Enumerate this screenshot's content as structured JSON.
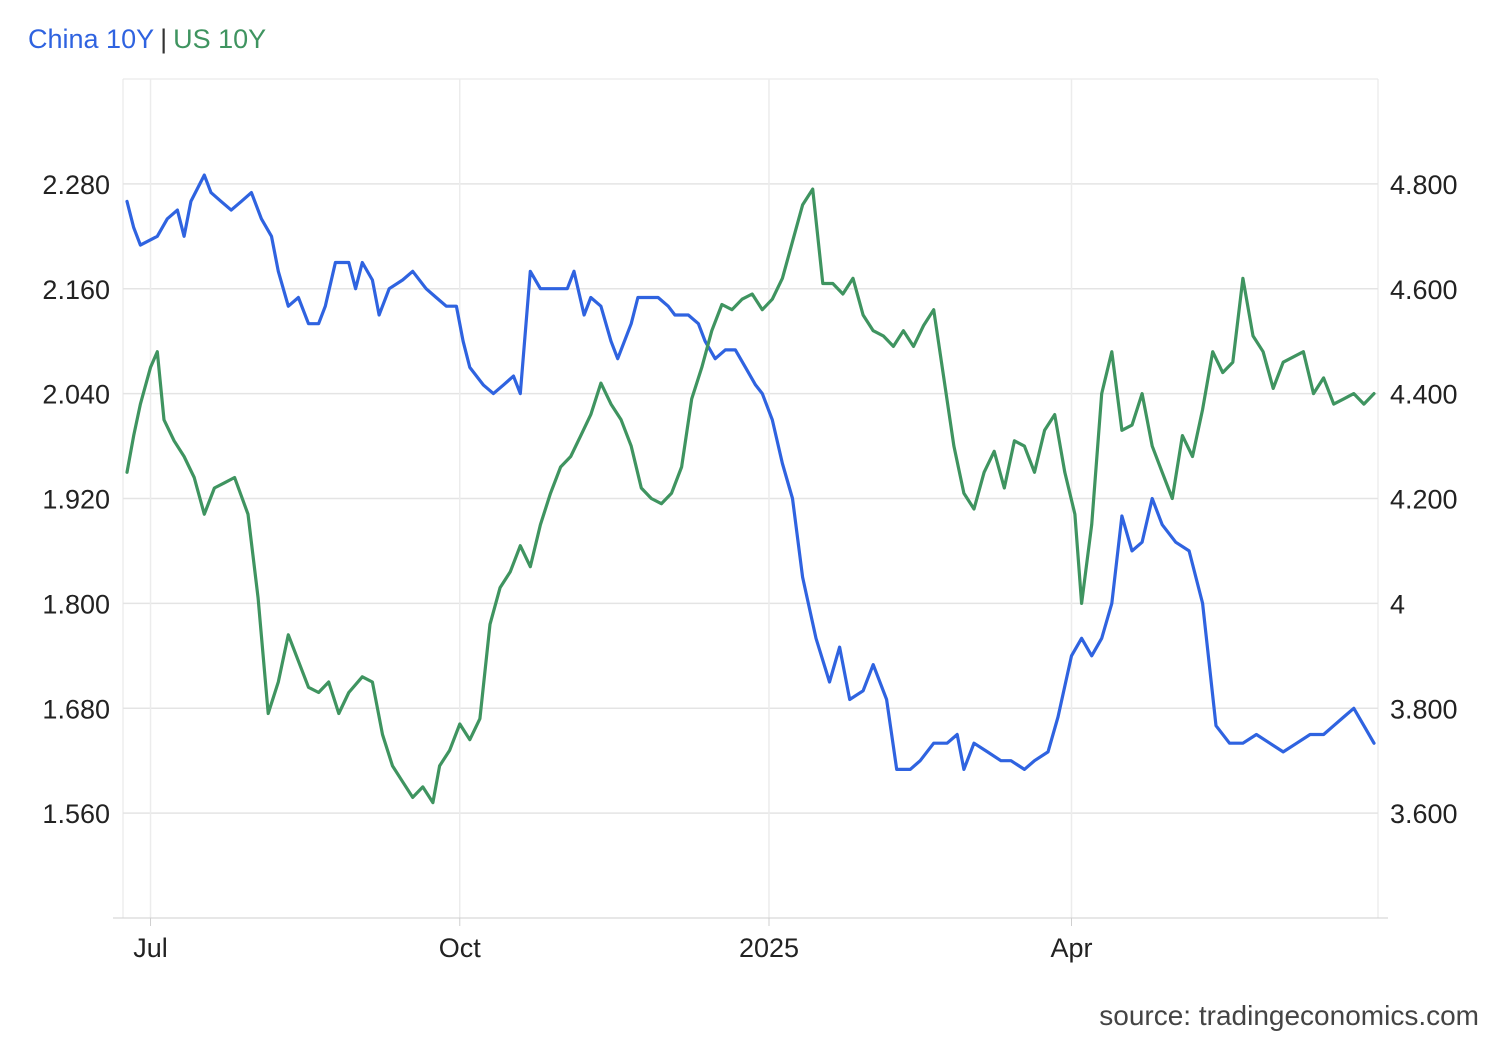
{
  "legend": {
    "china_label": "China 10Y",
    "separator": "|",
    "us_label": "US 10Y",
    "china_color": "#2f63e0",
    "us_color": "#3f9460"
  },
  "source_text": "source: tradingeconomics.com",
  "chart_data": {
    "type": "line",
    "title": "",
    "xlabel": "",
    "x_axis": {
      "ticks": [
        {
          "label": "Jul",
          "date": "2024-07-01"
        },
        {
          "label": "Oct",
          "date": "2024-10-01"
        },
        {
          "label": "2025",
          "date": "2025-01-01"
        },
        {
          "label": "Apr",
          "date": "2025-04-01"
        }
      ],
      "range": [
        "2024-06-24",
        "2025-06-30"
      ]
    },
    "y_left": {
      "ticks": [
        "2.280",
        "2.160",
        "2.040",
        "1.920",
        "1.800",
        "1.680",
        "1.560"
      ],
      "range": [
        1.44,
        2.4
      ]
    },
    "y_right": {
      "ticks": [
        "4.800",
        "4.600",
        "4.400",
        "4.200",
        "4",
        "3.800",
        "3.600"
      ],
      "range": [
        3.4,
        5.0
      ]
    },
    "grid": true,
    "legend_position": "top-left",
    "series": [
      {
        "name": "China 10Y",
        "axis": "left",
        "color": "#2f63e0",
        "points": [
          [
            "2024-06-24",
            2.26
          ],
          [
            "2024-06-26",
            2.23
          ],
          [
            "2024-06-28",
            2.21
          ],
          [
            "2024-07-03",
            2.22
          ],
          [
            "2024-07-06",
            2.24
          ],
          [
            "2024-07-09",
            2.25
          ],
          [
            "2024-07-11",
            2.22
          ],
          [
            "2024-07-13",
            2.26
          ],
          [
            "2024-07-17",
            2.29
          ],
          [
            "2024-07-19",
            2.27
          ],
          [
            "2024-07-22",
            2.26
          ],
          [
            "2024-07-25",
            2.25
          ],
          [
            "2024-07-28",
            2.26
          ],
          [
            "2024-07-31",
            2.27
          ],
          [
            "2024-08-03",
            2.24
          ],
          [
            "2024-08-06",
            2.22
          ],
          [
            "2024-08-08",
            2.18
          ],
          [
            "2024-08-11",
            2.14
          ],
          [
            "2024-08-14",
            2.15
          ],
          [
            "2024-08-17",
            2.12
          ],
          [
            "2024-08-20",
            2.12
          ],
          [
            "2024-08-22",
            2.14
          ],
          [
            "2024-08-25",
            2.19
          ],
          [
            "2024-08-29",
            2.19
          ],
          [
            "2024-08-31",
            2.16
          ],
          [
            "2024-09-02",
            2.19
          ],
          [
            "2024-09-05",
            2.17
          ],
          [
            "2024-09-07",
            2.13
          ],
          [
            "2024-09-10",
            2.16
          ],
          [
            "2024-09-14",
            2.17
          ],
          [
            "2024-09-17",
            2.18
          ],
          [
            "2024-09-21",
            2.16
          ],
          [
            "2024-09-24",
            2.15
          ],
          [
            "2024-09-27",
            2.14
          ],
          [
            "2024-09-30",
            2.14
          ],
          [
            "2024-10-02",
            2.1
          ],
          [
            "2024-10-04",
            2.07
          ],
          [
            "2024-10-08",
            2.05
          ],
          [
            "2024-10-11",
            2.04
          ],
          [
            "2024-10-14",
            2.05
          ],
          [
            "2024-10-17",
            2.06
          ],
          [
            "2024-10-19",
            2.04
          ],
          [
            "2024-10-22",
            2.18
          ],
          [
            "2024-10-25",
            2.16
          ],
          [
            "2024-10-29",
            2.16
          ],
          [
            "2024-11-02",
            2.16
          ],
          [
            "2024-11-04",
            2.18
          ],
          [
            "2024-11-07",
            2.13
          ],
          [
            "2024-11-09",
            2.15
          ],
          [
            "2024-11-12",
            2.14
          ],
          [
            "2024-11-15",
            2.1
          ],
          [
            "2024-11-17",
            2.08
          ],
          [
            "2024-11-21",
            2.12
          ],
          [
            "2024-11-23",
            2.15
          ],
          [
            "2024-11-26",
            2.15
          ],
          [
            "2024-11-29",
            2.15
          ],
          [
            "2024-12-02",
            2.14
          ],
          [
            "2024-12-04",
            2.13
          ],
          [
            "2024-12-08",
            2.13
          ],
          [
            "2024-12-11",
            2.12
          ],
          [
            "2024-12-13",
            2.1
          ],
          [
            "2024-12-16",
            2.08
          ],
          [
            "2024-12-19",
            2.09
          ],
          [
            "2024-12-22",
            2.09
          ],
          [
            "2024-12-25",
            2.07
          ],
          [
            "2024-12-28",
            2.05
          ],
          [
            "2024-12-30",
            2.04
          ],
          [
            "2025-01-02",
            2.01
          ],
          [
            "2025-01-05",
            1.96
          ],
          [
            "2025-01-08",
            1.92
          ],
          [
            "2025-01-11",
            1.83
          ],
          [
            "2025-01-15",
            1.76
          ],
          [
            "2025-01-19",
            1.71
          ],
          [
            "2025-01-22",
            1.75
          ],
          [
            "2025-01-25",
            1.69
          ],
          [
            "2025-01-29",
            1.7
          ],
          [
            "2025-02-01",
            1.73
          ],
          [
            "2025-02-05",
            1.69
          ],
          [
            "2025-02-08",
            1.61
          ],
          [
            "2025-02-12",
            1.61
          ],
          [
            "2025-02-15",
            1.62
          ],
          [
            "2025-02-19",
            1.64
          ],
          [
            "2025-02-23",
            1.64
          ],
          [
            "2025-02-26",
            1.65
          ],
          [
            "2025-02-28",
            1.61
          ],
          [
            "2025-03-03",
            1.64
          ],
          [
            "2025-03-07",
            1.63
          ],
          [
            "2025-03-11",
            1.62
          ],
          [
            "2025-03-14",
            1.62
          ],
          [
            "2025-03-18",
            1.61
          ],
          [
            "2025-03-21",
            1.62
          ],
          [
            "2025-03-25",
            1.63
          ],
          [
            "2025-03-28",
            1.67
          ],
          [
            "2025-04-01",
            1.74
          ],
          [
            "2025-04-04",
            1.76
          ],
          [
            "2025-04-07",
            1.74
          ],
          [
            "2025-04-10",
            1.76
          ],
          [
            "2025-04-13",
            1.8
          ],
          [
            "2025-04-16",
            1.9
          ],
          [
            "2025-04-19",
            1.86
          ],
          [
            "2025-04-22",
            1.87
          ],
          [
            "2025-04-25",
            1.92
          ],
          [
            "2025-04-28",
            1.89
          ],
          [
            "2025-05-02",
            1.87
          ],
          [
            "2025-05-06",
            1.86
          ],
          [
            "2025-05-10",
            1.8
          ],
          [
            "2025-05-14",
            1.66
          ],
          [
            "2025-05-18",
            1.64
          ],
          [
            "2025-05-22",
            1.64
          ],
          [
            "2025-05-26",
            1.65
          ],
          [
            "2025-05-30",
            1.64
          ],
          [
            "2025-06-03",
            1.63
          ],
          [
            "2025-06-07",
            1.64
          ],
          [
            "2025-06-11",
            1.65
          ],
          [
            "2025-06-15",
            1.65
          ],
          [
            "2025-06-18",
            1.66
          ],
          [
            "2025-06-21",
            1.67
          ],
          [
            "2025-06-24",
            1.68
          ],
          [
            "2025-06-27",
            1.66
          ],
          [
            "2025-06-30",
            1.64
          ]
        ]
      },
      {
        "name": "US 10Y",
        "axis": "right",
        "color": "#3f9460",
        "points": [
          [
            "2024-06-24",
            4.25
          ],
          [
            "2024-06-26",
            4.32
          ],
          [
            "2024-06-28",
            4.38
          ],
          [
            "2024-07-01",
            4.45
          ],
          [
            "2024-07-03",
            4.48
          ],
          [
            "2024-07-05",
            4.35
          ],
          [
            "2024-07-08",
            4.31
          ],
          [
            "2024-07-11",
            4.28
          ],
          [
            "2024-07-14",
            4.24
          ],
          [
            "2024-07-17",
            4.17
          ],
          [
            "2024-07-20",
            4.22
          ],
          [
            "2024-07-23",
            4.23
          ],
          [
            "2024-07-26",
            4.24
          ],
          [
            "2024-07-30",
            4.17
          ],
          [
            "2024-08-02",
            4.01
          ],
          [
            "2024-08-05",
            3.79
          ],
          [
            "2024-08-08",
            3.85
          ],
          [
            "2024-08-11",
            3.94
          ],
          [
            "2024-08-14",
            3.89
          ],
          [
            "2024-08-17",
            3.84
          ],
          [
            "2024-08-20",
            3.83
          ],
          [
            "2024-08-23",
            3.85
          ],
          [
            "2024-08-26",
            3.79
          ],
          [
            "2024-08-29",
            3.83
          ],
          [
            "2024-09-02",
            3.86
          ],
          [
            "2024-09-05",
            3.85
          ],
          [
            "2024-09-08",
            3.75
          ],
          [
            "2024-09-11",
            3.69
          ],
          [
            "2024-09-14",
            3.66
          ],
          [
            "2024-09-17",
            3.63
          ],
          [
            "2024-09-20",
            3.65
          ],
          [
            "2024-09-23",
            3.62
          ],
          [
            "2024-09-25",
            3.69
          ],
          [
            "2024-09-28",
            3.72
          ],
          [
            "2024-10-01",
            3.77
          ],
          [
            "2024-10-04",
            3.74
          ],
          [
            "2024-10-07",
            3.78
          ],
          [
            "2024-10-10",
            3.96
          ],
          [
            "2024-10-13",
            4.03
          ],
          [
            "2024-10-16",
            4.06
          ],
          [
            "2024-10-19",
            4.11
          ],
          [
            "2024-10-22",
            4.07
          ],
          [
            "2024-10-25",
            4.15
          ],
          [
            "2024-10-28",
            4.21
          ],
          [
            "2024-10-31",
            4.26
          ],
          [
            "2024-11-03",
            4.28
          ],
          [
            "2024-11-06",
            4.32
          ],
          [
            "2024-11-09",
            4.36
          ],
          [
            "2024-11-12",
            4.42
          ],
          [
            "2024-11-15",
            4.38
          ],
          [
            "2024-11-18",
            4.35
          ],
          [
            "2024-11-21",
            4.3
          ],
          [
            "2024-11-24",
            4.22
          ],
          [
            "2024-11-27",
            4.2
          ],
          [
            "2024-11-30",
            4.19
          ],
          [
            "2024-12-03",
            4.21
          ],
          [
            "2024-12-06",
            4.26
          ],
          [
            "2024-12-09",
            4.39
          ],
          [
            "2024-12-12",
            4.45
          ],
          [
            "2024-12-15",
            4.52
          ],
          [
            "2024-12-18",
            4.57
          ],
          [
            "2024-12-21",
            4.56
          ],
          [
            "2024-12-24",
            4.58
          ],
          [
            "2024-12-27",
            4.59
          ],
          [
            "2024-12-30",
            4.56
          ],
          [
            "2025-01-02",
            4.58
          ],
          [
            "2025-01-05",
            4.62
          ],
          [
            "2025-01-08",
            4.69
          ],
          [
            "2025-01-11",
            4.76
          ],
          [
            "2025-01-14",
            4.79
          ],
          [
            "2025-01-17",
            4.61
          ],
          [
            "2025-01-20",
            4.61
          ],
          [
            "2025-01-23",
            4.59
          ],
          [
            "2025-01-26",
            4.62
          ],
          [
            "2025-01-29",
            4.55
          ],
          [
            "2025-02-01",
            4.52
          ],
          [
            "2025-02-04",
            4.51
          ],
          [
            "2025-02-07",
            4.49
          ],
          [
            "2025-02-10",
            4.52
          ],
          [
            "2025-02-13",
            4.49
          ],
          [
            "2025-02-16",
            4.53
          ],
          [
            "2025-02-19",
            4.56
          ],
          [
            "2025-02-22",
            4.43
          ],
          [
            "2025-02-25",
            4.3
          ],
          [
            "2025-02-28",
            4.21
          ],
          [
            "2025-03-03",
            4.18
          ],
          [
            "2025-03-06",
            4.25
          ],
          [
            "2025-03-09",
            4.29
          ],
          [
            "2025-03-12",
            4.22
          ],
          [
            "2025-03-15",
            4.31
          ],
          [
            "2025-03-18",
            4.3
          ],
          [
            "2025-03-21",
            4.25
          ],
          [
            "2025-03-24",
            4.33
          ],
          [
            "2025-03-27",
            4.36
          ],
          [
            "2025-03-30",
            4.25
          ],
          [
            "2025-04-02",
            4.17
          ],
          [
            "2025-04-04",
            4.0
          ],
          [
            "2025-04-07",
            4.15
          ],
          [
            "2025-04-10",
            4.4
          ],
          [
            "2025-04-13",
            4.48
          ],
          [
            "2025-04-16",
            4.33
          ],
          [
            "2025-04-19",
            4.34
          ],
          [
            "2025-04-22",
            4.4
          ],
          [
            "2025-04-25",
            4.3
          ],
          [
            "2025-04-28",
            4.25
          ],
          [
            "2025-05-01",
            4.2
          ],
          [
            "2025-05-04",
            4.32
          ],
          [
            "2025-05-07",
            4.28
          ],
          [
            "2025-05-10",
            4.37
          ],
          [
            "2025-05-13",
            4.48
          ],
          [
            "2025-05-16",
            4.44
          ],
          [
            "2025-05-19",
            4.46
          ],
          [
            "2025-05-22",
            4.62
          ],
          [
            "2025-05-25",
            4.51
          ],
          [
            "2025-05-28",
            4.48
          ],
          [
            "2025-05-31",
            4.41
          ],
          [
            "2025-06-03",
            4.46
          ],
          [
            "2025-06-06",
            4.47
          ],
          [
            "2025-06-09",
            4.48
          ],
          [
            "2025-06-12",
            4.4
          ],
          [
            "2025-06-15",
            4.43
          ],
          [
            "2025-06-18",
            4.38
          ],
          [
            "2025-06-21",
            4.39
          ],
          [
            "2025-06-24",
            4.4
          ],
          [
            "2025-06-27",
            4.38
          ],
          [
            "2025-06-30",
            4.4
          ]
        ]
      }
    ]
  }
}
